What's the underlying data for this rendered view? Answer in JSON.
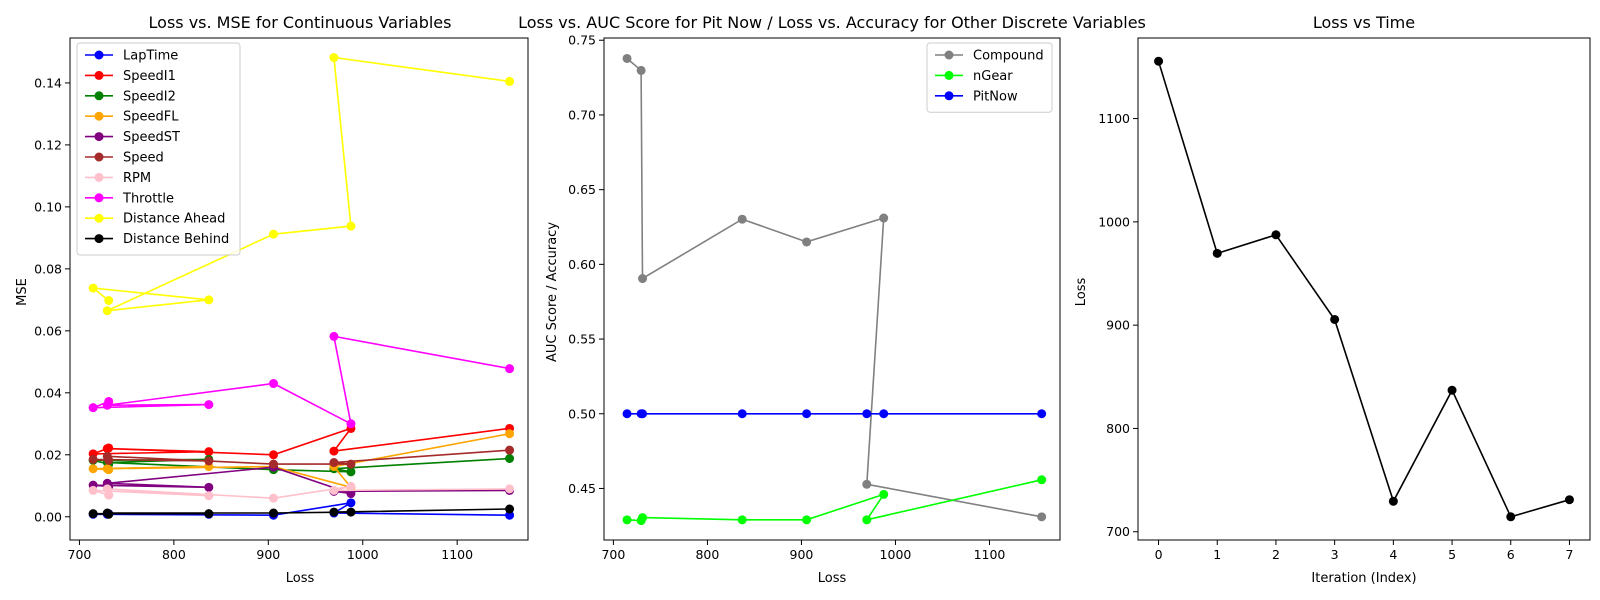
{
  "chart_data": [
    {
      "type": "line",
      "title": "Loss vs. MSE for Continuous Variables",
      "xlabel": "Loss",
      "ylabel": "MSE",
      "xlim": [
        690,
        1175
      ],
      "ylim": [
        -0.0075,
        0.1545
      ],
      "xticks": [
        700,
        800,
        900,
        1000,
        1100
      ],
      "yticks": [
        0.0,
        0.02,
        0.04,
        0.06,
        0.08,
        0.1,
        0.12,
        0.14
      ],
      "ytick_labels": [
        "0.00",
        "0.02",
        "0.04",
        "0.06",
        "0.08",
        "0.10",
        "0.12",
        "0.14"
      ],
      "legend_position": "top-left",
      "x": [
        1155.5,
        969.5,
        987.5,
        905.5,
        729.5,
        837.0,
        714.5,
        731.0
      ],
      "series": [
        {
          "name": "LapTime",
          "color": "#0000ff",
          "values": [
            0.0005,
            0.0012,
            0.0045,
            0.0005,
            0.0008,
            0.0008,
            0.0008,
            0.001
          ]
        },
        {
          "name": "SpeedI1",
          "color": "#ff0000",
          "values": [
            0.0285,
            0.0212,
            0.0285,
            0.02,
            0.022,
            0.021,
            0.0203,
            0.0222
          ]
        },
        {
          "name": "SpeedI2",
          "color": "#008000",
          "values": [
            0.0188,
            0.0155,
            0.0145,
            0.0152,
            0.0175,
            0.0185,
            0.0182,
            0.017
          ]
        },
        {
          "name": "SpeedFL",
          "color": "#ffa500",
          "values": [
            0.0268,
            0.0162,
            0.0095,
            0.0162,
            0.0155,
            0.0162,
            0.0155,
            0.0152
          ]
        },
        {
          "name": "SpeedST",
          "color": "#800080",
          "values": [
            0.0085,
            0.0082,
            0.0075,
            0.016,
            0.0108,
            0.0095,
            0.0102,
            0.0098
          ]
        },
        {
          "name": "Speed",
          "color": "#a52a2a",
          "values": [
            0.0215,
            0.0175,
            0.017,
            0.017,
            0.0195,
            0.018,
            0.0185,
            0.0182
          ]
        },
        {
          "name": "RPM",
          "color": "#ffc0cb",
          "values": [
            0.009,
            0.0085,
            0.0098,
            0.006,
            0.009,
            0.0068,
            0.0085,
            0.007
          ]
        },
        {
          "name": "Throttle",
          "color": "#ff00ff",
          "values": [
            0.0478,
            0.0582,
            0.03,
            0.043,
            0.036,
            0.0362,
            0.0352,
            0.0372
          ]
        },
        {
          "name": "Distance Ahead",
          "color": "#ffff00",
          "values": [
            0.1405,
            0.1482,
            0.0938,
            0.0912,
            0.0665,
            0.07,
            0.0738,
            0.0698
          ]
        },
        {
          "name": "Distance Behind",
          "color": "#000000",
          "values": [
            0.0025,
            0.0015,
            0.0015,
            0.0012,
            0.0012,
            0.001,
            0.001,
            0.0008
          ]
        }
      ]
    },
    {
      "type": "line",
      "title": "Loss vs. AUC Score for Pit Now / Loss vs. Accuracy for Other Discrete Variables",
      "xlabel": "Loss",
      "ylabel": "AUC Score / Accuracy",
      "xlim": [
        690,
        1175
      ],
      "ylim": [
        0.4155,
        0.7515
      ],
      "xticks": [
        700,
        800,
        900,
        1000,
        1100
      ],
      "yticks": [
        0.45,
        0.5,
        0.55,
        0.6,
        0.65,
        0.7,
        0.75
      ],
      "ytick_labels": [
        "0.45",
        "0.50",
        "0.55",
        "0.60",
        "0.65",
        "0.70",
        "0.75"
      ],
      "legend_position": "top-right",
      "x": [
        714.5,
        729.5,
        731.0,
        837.0,
        905.5,
        987.5,
        969.5,
        1155.5
      ],
      "series": [
        {
          "name": "Compound",
          "color": "#808080",
          "values": [
            0.7378,
            0.7298,
            0.5905,
            0.6302,
            0.615,
            0.631,
            0.4528,
            0.431
          ]
        },
        {
          "name": "nGear",
          "color": "#00ff00",
          "values": [
            0.429,
            0.4285,
            0.4305,
            0.429,
            0.429,
            0.446,
            0.429,
            0.4558
          ]
        },
        {
          "name": "PitNow",
          "color": "#0000ff",
          "values": [
            0.5,
            0.5,
            0.5,
            0.5,
            0.5,
            0.5,
            0.5,
            0.5
          ]
        }
      ]
    },
    {
      "type": "line",
      "title": "Loss vs Time",
      "xlabel": "Iteration (Index)",
      "ylabel": "Loss",
      "xlim": [
        -0.35,
        7.35
      ],
      "ylim": [
        692,
        1178
      ],
      "xticks": [
        0,
        1,
        2,
        3,
        4,
        5,
        6,
        7
      ],
      "yticks": [
        700,
        800,
        900,
        1000,
        1100
      ],
      "ytick_labels": [
        "700",
        "800",
        "900",
        "1000",
        "1100"
      ],
      "series": [
        {
          "color": "#000000",
          "x": [
            0,
            1,
            2,
            3,
            4,
            5,
            6,
            7
          ],
          "values": [
            1155.5,
            969.5,
            987.5,
            905.5,
            729.5,
            837.0,
            714.5,
            731.0
          ]
        }
      ]
    }
  ]
}
